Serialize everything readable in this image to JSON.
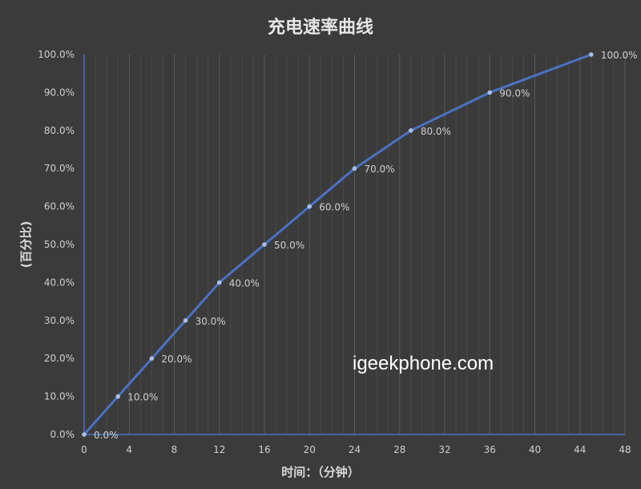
{
  "chart_data": {
    "type": "line",
    "title": "充电速率曲线",
    "xlabel": "时间：（分钟）",
    "ylabel": "(百分比)",
    "x": [
      0,
      3,
      6,
      9,
      12,
      16,
      20,
      24,
      29,
      36,
      45
    ],
    "series": [
      {
        "values": [
          0,
          10,
          20,
          30,
          40,
          50,
          60,
          70,
          80,
          90,
          100
        ],
        "labels": [
          "0.0%",
          "10.0%",
          "20.0%",
          "30.0%",
          "40.0%",
          "50.0%",
          "60.0%",
          "70.0%",
          "80.0%",
          "90.0%",
          "100.0%"
        ]
      }
    ],
    "xlim": [
      0,
      48
    ],
    "ylim": [
      0,
      100
    ],
    "xticks": [
      "0",
      "4",
      "8",
      "12",
      "16",
      "20",
      "24",
      "28",
      "32",
      "36",
      "40",
      "44",
      "48"
    ],
    "yticks": [
      "0.0%",
      "10.0%",
      "20.0%",
      "30.0%",
      "40.0%",
      "50.0%",
      "60.0%",
      "70.0%",
      "80.0%",
      "90.0%",
      "100.0%"
    ],
    "grid": "vertical minor every 1 minute",
    "colors": {
      "line": "#4a72c4",
      "marker": "#a9bfe8",
      "background": "#3b3b3b",
      "grid": "#505050"
    }
  },
  "watermark": "igeekphone.com"
}
